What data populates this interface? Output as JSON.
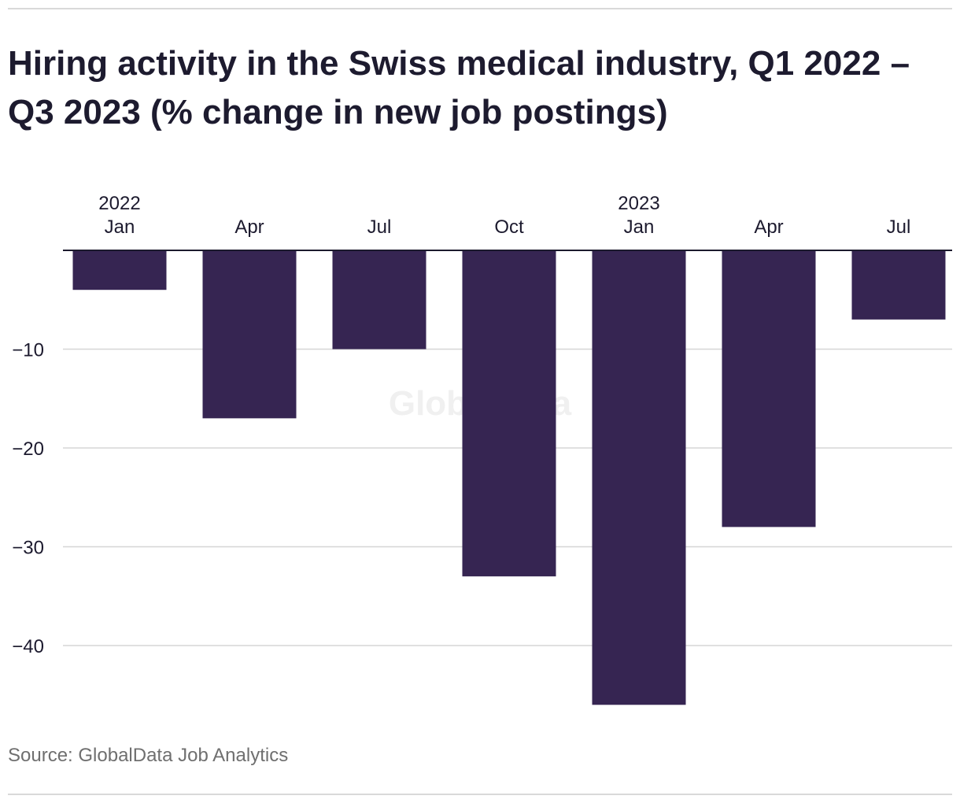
{
  "chart_data": {
    "type": "bar",
    "title": "Hiring activity in the Swiss medical industry, Q1 2022 – Q3 2023 (% change in new job postings)",
    "source": "Source: GlobalData Job Analytics",
    "watermark": "GlobalData",
    "categories": [
      "Jan",
      "Apr",
      "Jul",
      "Oct",
      "Jan",
      "Apr",
      "Jul"
    ],
    "year_labels": [
      "2022",
      "",
      "",
      "",
      "2023",
      "",
      ""
    ],
    "values": [
      -4,
      -17,
      -10,
      -33,
      -46,
      -28,
      -7
    ],
    "xaxis_position": "top",
    "ylim": [
      -48,
      0
    ],
    "yticks": [
      -10,
      -20,
      -30,
      -40
    ],
    "ytick_labels": [
      "−10",
      "−20",
      "−30",
      "−40"
    ],
    "grid": true,
    "bar_color": "#362552"
  }
}
